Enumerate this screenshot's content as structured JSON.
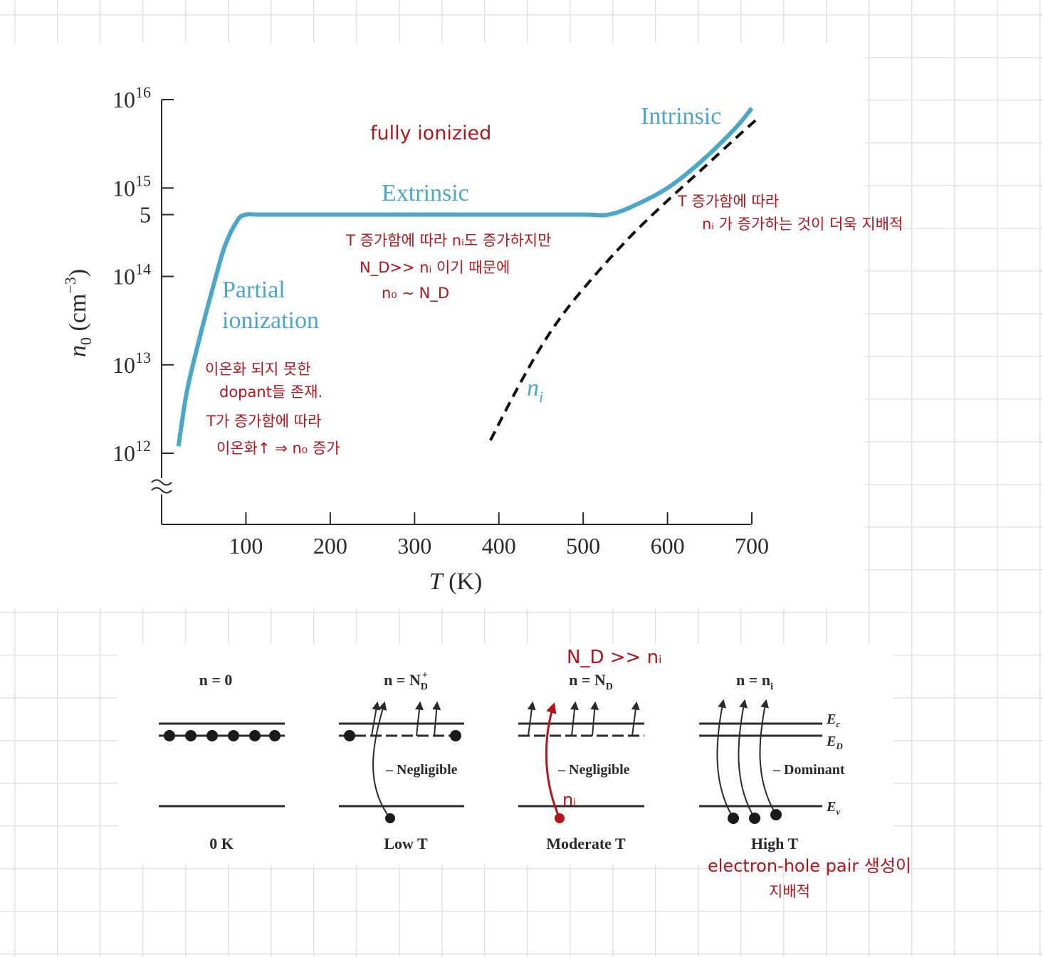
{
  "chart_data": {
    "type": "line",
    "xlabel": "T (K)",
    "ylabel": "n0 (cm^-3)",
    "xlim": [
      0,
      700
    ],
    "ylim": [
      1000000000000.0,
      1e+16
    ],
    "y_scale": "log",
    "x_ticks": [
      "100",
      "200",
      "300",
      "400",
      "500",
      "600",
      "700"
    ],
    "y_ticks": [
      {
        "base": "10",
        "exp": "16"
      },
      {
        "base": "10",
        "exp": "15"
      },
      {
        "label": "5"
      },
      {
        "base": "10",
        "exp": "14"
      },
      {
        "base": "10",
        "exp": "13"
      },
      {
        "base": "10",
        "exp": "12"
      }
    ],
    "series": [
      {
        "style": "solid",
        "color": "#4ba6cc",
        "x": [
          20,
          30,
          45,
          60,
          75,
          90,
          100,
          120,
          200,
          300,
          400,
          500,
          530,
          560,
          600,
          640,
          680,
          700
        ],
        "y": [
          1200000000000.0,
          5000000000000.0,
          20000000000000.0,
          70000000000000.0,
          220000000000000.0,
          430000000000000.0,
          500000000000000.0,
          500000000000000.0,
          500000000000000.0,
          500000000000000.0,
          500000000000000.0,
          500000000000000.0,
          500000000000000.0,
          630000000000000.0,
          1000000000000000.0,
          2000000000000000.0,
          4700000000000000.0,
          8000000000000000.0
        ]
      },
      {
        "style": "dashed",
        "color": "#111111",
        "x": [
          390,
          420,
          450,
          480,
          520,
          560,
          600,
          640,
          680,
          710
        ],
        "y": [
          1400000000000.0,
          5000000000000.0,
          16000000000000.0,
          42000000000000.0,
          120000000000000.0,
          310000000000000.0,
          720000000000000.0,
          1600000000000000.0,
          3600000000000000.0,
          6500000000000000.0
        ]
      }
    ],
    "regions": [
      "Partial",
      "ionization",
      "Extrinsic",
      "Intrinsic"
    ],
    "ni_label": "n",
    "ni_sub": "i"
  },
  "annotations": {
    "fully": "fully ionizied",
    "partial": [
      "이온화 되지 못한",
      "dopant들 존재.",
      "T가 증가함에 따라",
      "이온화↑ ⇒ n₀ 증가"
    ],
    "extrinsic": [
      "T 증가함에 따라 nᵢ도 증가하지만",
      "N_D>> nᵢ 이기 때문에",
      "n₀ ~ N_D"
    ],
    "intrinsic": [
      "T 증가함에 따라",
      "nᵢ 가 증가하는 것이 더욱 지배적"
    ],
    "nd_ni": "N_D >> nᵢ",
    "ni_arrow": "nᵢ",
    "high_t": [
      "electron-hole pair 생성이",
      "지배적"
    ]
  },
  "diagram": {
    "panels": [
      {
        "top": "n = 0",
        "bottom": "0 K"
      },
      {
        "top": "n = N",
        "top_sub": "D",
        "top_sup": "+",
        "bottom": "Low T",
        "middle": "– Negligible"
      },
      {
        "top": "n = N",
        "top_sub": "D",
        "bottom": "Moderate T",
        "middle": "– Negligible"
      },
      {
        "top": "n = n",
        "top_sub": "i",
        "bottom": "High T",
        "middle": "– Dominant"
      }
    ],
    "levels": {
      "ec": "E",
      "ec_sub": "c",
      "ed": "E",
      "ed_sub": "D",
      "ev": "E",
      "ev_sub": "v"
    }
  }
}
